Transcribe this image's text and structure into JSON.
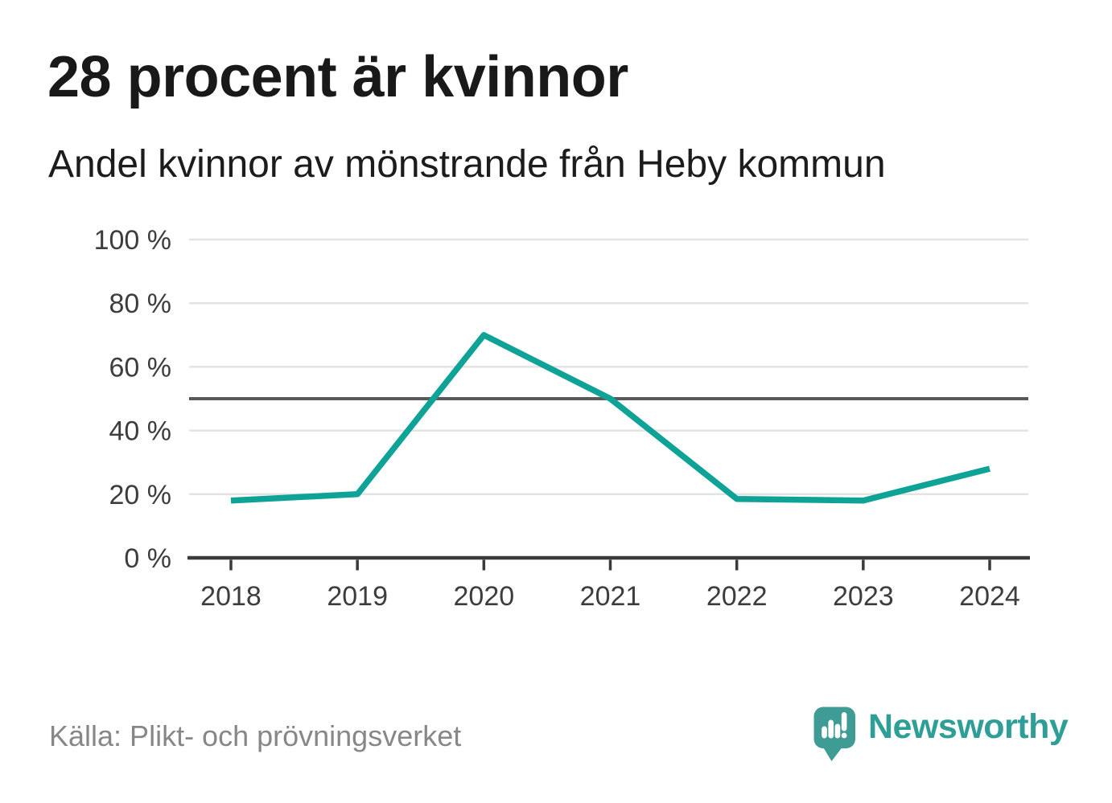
{
  "chart_data": {
    "type": "line",
    "title": "28 procent är kvinnor",
    "subtitle": "Andel kvinnor av mönstrande från Heby kommun",
    "source": "Källa: Plikt- och prövningsverket",
    "categories": [
      "2018",
      "2019",
      "2020",
      "2021",
      "2022",
      "2023",
      "2024"
    ],
    "values": [
      18,
      20,
      70,
      50,
      18.5,
      18,
      28
    ],
    "series_name": "Andel kvinnor av mönstrande",
    "unit": "%",
    "ylim": [
      0,
      100
    ],
    "yticks": [
      0,
      20,
      40,
      60,
      80,
      100
    ],
    "ytick_suffix": " %",
    "reference_line": 50,
    "grid": "horizontal",
    "legend": "none",
    "colors": {
      "line": "#0fa296",
      "grid": "#e3e3e3",
      "reference": "#595959",
      "axis": "#3a3a3a",
      "tick_labels": "#3d3d3d"
    }
  },
  "footer": {
    "brand": {
      "name": "Newsworthy",
      "color": "#2f9e97",
      "icon_color": "#3f9c94"
    }
  }
}
